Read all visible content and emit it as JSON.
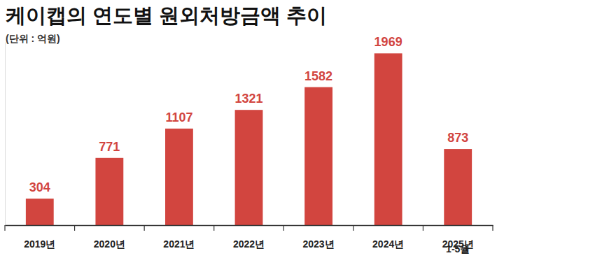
{
  "chart_data": {
    "type": "bar",
    "title": "케이캡의 연도별 원외처방금액 추이",
    "subtitle": "(단위 : 억원)",
    "categories": [
      "2019년",
      "2020년",
      "2021년",
      "2022년",
      "2023년",
      "2024년",
      "2025년\n1-5월"
    ],
    "values": [
      304,
      771,
      1107,
      1321,
      1582,
      1969,
      873
    ],
    "color": "#d2453f",
    "ylim": [
      0,
      2100
    ],
    "data_labels": true,
    "tick_labels": "x",
    "grid": false
  }
}
